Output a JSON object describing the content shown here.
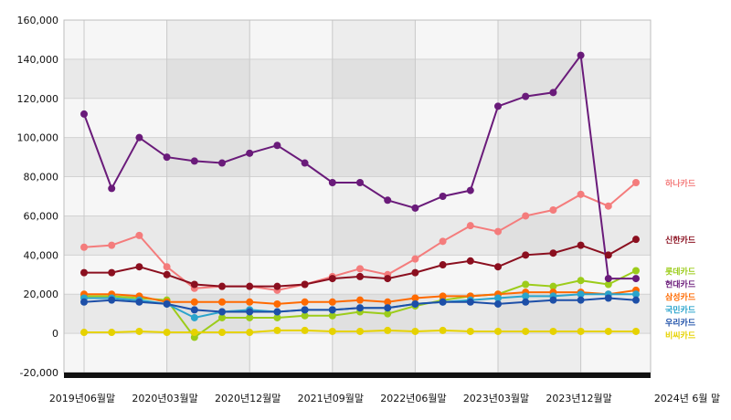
{
  "chart_data": {
    "type": "line",
    "title": "",
    "xlabel": "",
    "ylabel": "",
    "ylim": [
      -20000,
      160000
    ],
    "yticks": [
      -20000,
      0,
      20000,
      40000,
      60000,
      80000,
      100000,
      120000,
      140000,
      160000
    ],
    "ytick_labels": [
      "-20,000",
      "0",
      "20,000",
      "40,000",
      "60,000",
      "80,000",
      "100,000",
      "120,000",
      "140,000",
      "160,000"
    ],
    "x_tick_labels": [
      "2019년06월말",
      "2020년03월말",
      "2020년12월말",
      "2021년09월말",
      "2022년06월말",
      "2023년03월말",
      "2023년12월말",
      "2024년 6월 말"
    ],
    "grid": true,
    "legend": "right",
    "x": [
      "2019-06",
      "2019-09",
      "2019-12",
      "2020-03",
      "2020-06",
      "2020-09",
      "2020-12",
      "2021-03",
      "2021-06",
      "2021-09",
      "2021-12",
      "2022-03",
      "2022-06",
      "2022-09",
      "2022-12",
      "2023-03",
      "2023-06",
      "2023-09",
      "2023-12",
      "2024-03",
      "2024-06"
    ],
    "series": [
      {
        "name": "하나카드",
        "color": "#f47c7c",
        "values": [
          44000,
          45000,
          50000,
          34000,
          23000,
          24000,
          24000,
          22000,
          25000,
          29000,
          33000,
          30000,
          38000,
          47000,
          55000,
          52000,
          60000,
          63000,
          71000,
          65000,
          77000
        ]
      },
      {
        "name": "신한카드",
        "color": "#8b0f1f",
        "values": [
          31000,
          31000,
          34000,
          30000,
          25000,
          24000,
          24000,
          24000,
          25000,
          28000,
          29000,
          28000,
          31000,
          35000,
          37000,
          34000,
          40000,
          41000,
          45000,
          40000,
          48000
        ]
      },
      {
        "name": "롯데카드",
        "color": "#9ccc1a",
        "values": [
          19000,
          19000,
          18000,
          17000,
          -2000,
          8000,
          8000,
          8000,
          9000,
          9000,
          11000,
          10000,
          14000,
          17000,
          19000,
          20000,
          25000,
          24000,
          27000,
          25000,
          32000
        ]
      },
      {
        "name": "현대카드",
        "color": "#6a1b7a",
        "values": [
          112000,
          74000,
          100000,
          90000,
          88000,
          87000,
          92000,
          96000,
          87000,
          77000,
          77000,
          68000,
          64000,
          70000,
          73000,
          116000,
          121000,
          123000,
          142000,
          28000,
          28000
        ]
      },
      {
        "name": "삼성카드",
        "color": "#ff6a00",
        "values": [
          20000,
          20000,
          19000,
          16000,
          16000,
          16000,
          16000,
          15000,
          16000,
          16000,
          17000,
          16000,
          18000,
          19000,
          19000,
          20000,
          21000,
          21000,
          21000,
          20000,
          22000
        ]
      },
      {
        "name": "국민카드",
        "color": "#2aa4cc",
        "values": [
          18000,
          18000,
          17000,
          15000,
          8000,
          11000,
          12000,
          11000,
          12000,
          12000,
          13000,
          13000,
          15000,
          16000,
          17000,
          18000,
          19000,
          19000,
          20000,
          20000,
          20000
        ]
      },
      {
        "name": "우리카드",
        "color": "#1d4fa8",
        "values": [
          16000,
          17000,
          16000,
          15000,
          12000,
          11000,
          11000,
          11000,
          12000,
          12000,
          13000,
          13000,
          15000,
          16000,
          16000,
          15000,
          16000,
          17000,
          17000,
          18000,
          17000
        ]
      },
      {
        "name": "비씨카드",
        "color": "#e6d200",
        "values": [
          500,
          500,
          1000,
          500,
          500,
          500,
          500,
          1500,
          1500,
          1000,
          1000,
          1500,
          1000,
          1500,
          1000,
          1000,
          1000,
          1000,
          1000,
          1000,
          1000
        ]
      }
    ]
  }
}
